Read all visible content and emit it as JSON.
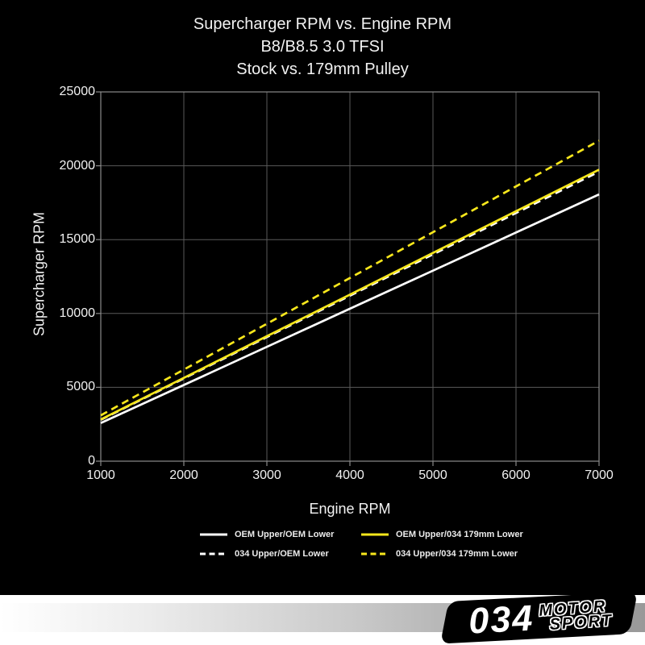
{
  "title": {
    "line1": "Supercharger RPM vs. Engine RPM",
    "line2": "B8/B8.5 3.0 TFSI",
    "line3": "Stock vs. 179mm Pulley"
  },
  "colors": {
    "chart_background": "#000000",
    "footer_background": "#ffffff",
    "grid": "#5a5a5a",
    "axis": "#8a8a8a",
    "text": "#f2f2f2",
    "yellow_line": "#f8e71c",
    "white_line": "#ffffff",
    "band_gray": "#999999"
  },
  "chart_data": {
    "type": "line",
    "title": "Supercharger RPM vs. Engine RPM / B8/B8.5 3.0 TFSI / Stock vs. 179mm Pulley",
    "xlabel": "Engine RPM",
    "ylabel": "Supercharger RPM",
    "xlim": [
      1000,
      7000
    ],
    "ylim": [
      0,
      25000
    ],
    "x_ticks": [
      1000,
      2000,
      3000,
      4000,
      5000,
      6000,
      7000
    ],
    "y_ticks": [
      0,
      5000,
      10000,
      15000,
      20000,
      25000
    ],
    "grid": true,
    "legend_position": "below-chart",
    "x": [
      1000,
      2000,
      3000,
      4000,
      5000,
      6000,
      7000
    ],
    "series": [
      {
        "name": "OEM Upper/OEM Lower",
        "color": "#ffffff",
        "style": "solid",
        "values": [
          2580,
          5160,
          7740,
          10320,
          12900,
          15480,
          18060
        ]
      },
      {
        "name": "034 Upper/OEM Lower",
        "color": "#ffffff",
        "style": "dashed",
        "values": [
          2800,
          5600,
          8400,
          11200,
          14000,
          16800,
          19600
        ]
      },
      {
        "name": "OEM Upper/034 179mm Lower",
        "color": "#f8e71c",
        "style": "solid",
        "values": [
          2820,
          5640,
          8460,
          11280,
          14100,
          16920,
          19740
        ]
      },
      {
        "name": "034 Upper/034 179mm Lower",
        "color": "#f8e71c",
        "style": "dashed",
        "values": [
          3100,
          6200,
          9300,
          12400,
          15500,
          18600,
          21700
        ]
      }
    ]
  },
  "legend": {
    "items": [
      {
        "label": "OEM Upper/OEM Lower",
        "color": "#ffffff",
        "style": "solid"
      },
      {
        "label": "OEM Upper/034 179mm Lower",
        "color": "#f8e71c",
        "style": "solid"
      },
      {
        "label": "034 Upper/OEM Lower",
        "color": "#ffffff",
        "style": "dashed"
      },
      {
        "label": "034 Upper/034 179mm Lower",
        "color": "#f8e71c",
        "style": "dashed"
      }
    ]
  },
  "logo": {
    "number": "034",
    "word_top": "MOTOR",
    "word_bottom": "SPORT"
  }
}
